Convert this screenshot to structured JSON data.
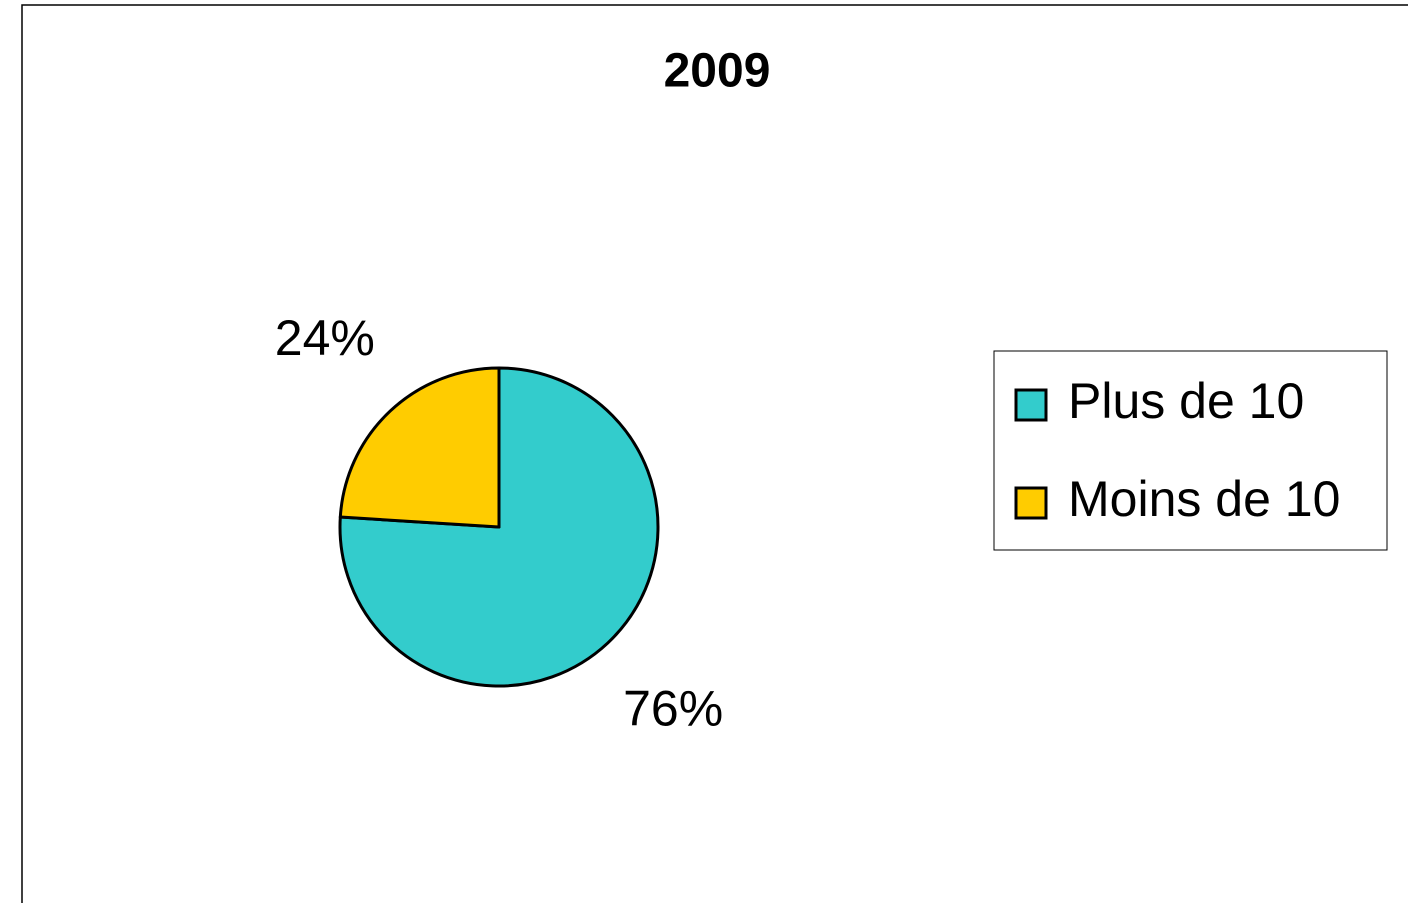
{
  "chart_data": {
    "type": "pie",
    "title": "2009",
    "categories": [
      "Plus de 10",
      "Moins de 10"
    ],
    "values": [
      76,
      24
    ],
    "value_labels": [
      "76%",
      "24%"
    ],
    "colors": [
      "#33cccc",
      "#ffcc00"
    ],
    "legend": "right"
  }
}
